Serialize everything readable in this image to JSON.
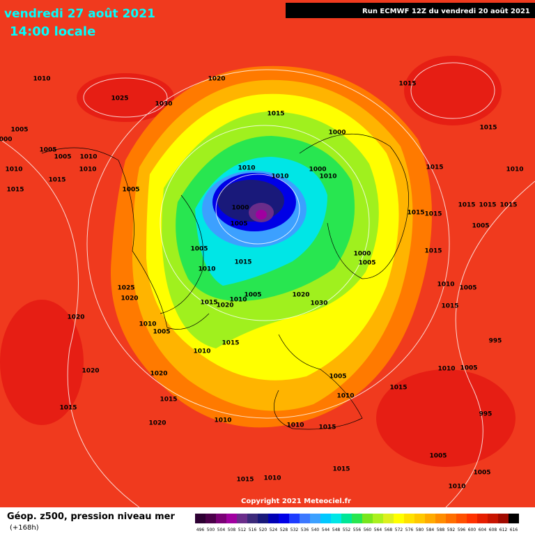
{
  "header": {
    "title": "vendredi 27 août 2021",
    "subtitle": "14:00 locale",
    "run": "Run ECMWF 12Z du vendredi 20 août 2021"
  },
  "map": {
    "pressure_labels": [
      "1010",
      "1025",
      "1030",
      "1020",
      "1015",
      "1015",
      "1000",
      "1015",
      "1005",
      "1000",
      "1005",
      "1005",
      "1010",
      "1010",
      "1010",
      "1015",
      "1010",
      "1010",
      "1000",
      "1010",
      "1015",
      "1010",
      "1015",
      "1005",
      "1000",
      "1005",
      "1015",
      "1015",
      "1015",
      "1015",
      "1015",
      "1005",
      "1005",
      "1000",
      "1005",
      "1015",
      "1015",
      "1010",
      "1025",
      "1005",
      "1020",
      "1020",
      "1015",
      "1020",
      "1010",
      "1030",
      "1020",
      "1010",
      "1005",
      "1015",
      "1010",
      "1020",
      "1020",
      "1005",
      "1015",
      "1015",
      "1010",
      "1015",
      "1020",
      "1010",
      "1010",
      "1015",
      "995",
      "1005",
      "1015",
      "1015",
      "1010",
      "1005",
      "1010",
      "1015",
      "1005",
      "1010",
      "995",
      "1005",
      "1010"
    ]
  },
  "footer": {
    "copyright": "Copyright 2021 Meteociel.fr",
    "legend_title": "Géop. z500, pression niveau mer",
    "lead_time": "(+168h)",
    "scale": {
      "values": [
        496,
        500,
        504,
        508,
        512,
        516,
        520,
        524,
        528,
        532,
        536,
        540,
        544,
        548,
        552,
        556,
        560,
        564,
        568,
        572,
        576,
        580,
        584,
        588,
        592,
        596,
        600,
        604,
        608,
        612,
        616
      ],
      "colors": [
        "#2d0032",
        "#4b0049",
        "#7a0075",
        "#a000a0",
        "#6a2d8a",
        "#3c2a7a",
        "#19197a",
        "#0000b4",
        "#0000e6",
        "#1e3cff",
        "#3c78ff",
        "#3ca0ff",
        "#00c8ff",
        "#00e6e6",
        "#00e696",
        "#28e650",
        "#78e61e",
        "#aaf01e",
        "#dcf01e",
        "#ffff00",
        "#ffe100",
        "#ffc800",
        "#ffaa00",
        "#ff8c00",
        "#ff6e00",
        "#ff5000",
        "#ff3200",
        "#e61e00",
        "#c81400",
        "#a00a00",
        "#000000"
      ]
    }
  }
}
